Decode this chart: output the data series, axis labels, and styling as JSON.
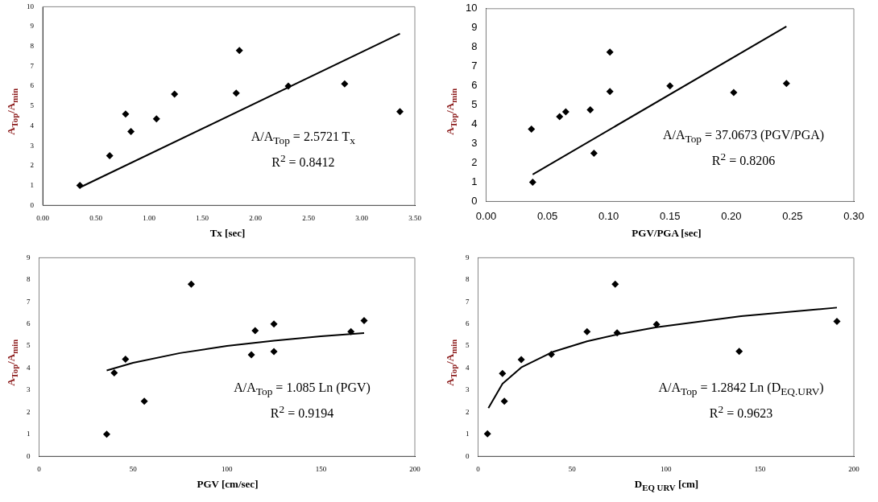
{
  "chart_data": [
    {
      "type": "scatter",
      "xlabel": "Tx [sec]",
      "ylabel": "A$_{Top}$/A$_{min}$",
      "annotations": [
        "A/A$_{Top}$ = 2.5721 T$_{x}$",
        "R$^{2}$ = 0.8412"
      ],
      "xlim": [
        0,
        3.5
      ],
      "xticks": [
        {
          "value": 0,
          "label": "0.00"
        },
        {
          "value": 0.5,
          "label": "0.50"
        },
        {
          "value": 1,
          "label": "1.00"
        },
        {
          "value": 1.5,
          "label": "1.50"
        },
        {
          "value": 2,
          "label": "2.00"
        },
        {
          "value": 2.5,
          "label": "2.50"
        },
        {
          "value": 3,
          "label": "3.00"
        },
        {
          "value": 3.5,
          "label": "3.50"
        }
      ],
      "ylim": [
        0,
        10
      ],
      "yticks": [
        0,
        1,
        2,
        3,
        4,
        5,
        6,
        7,
        8,
        9,
        10
      ],
      "grid": false,
      "legend": false,
      "marker": "diamond",
      "series": [
        {
          "color": "#000000",
          "x": [
            0.35,
            0.63,
            0.78,
            0.83,
            1.07,
            1.24,
            1.82,
            1.85,
            2.31,
            2.84,
            3.36
          ],
          "values": [
            1.0,
            2.5,
            4.6,
            3.72,
            4.35,
            5.6,
            5.65,
            7.8,
            6.0,
            6.12,
            4.72
          ]
        },
        {
          "type": "line",
          "color": "#000000",
          "marker": "none",
          "x": [
            0.35,
            3.36
          ],
          "values": [
            0.9,
            8.64
          ]
        }
      ]
    },
    {
      "type": "scatter",
      "xlabel": "PGV/PGA [sec]",
      "ylabel": "A$_{Top}$/A$_{min}$",
      "annotations": [
        "A/A$_{Top}$ = 37.0673 (PGV/PGA)",
        "R$^{2}$ = 0.8206"
      ],
      "xlim": [
        0,
        0.3
      ],
      "xticks": [
        {
          "value": 0,
          "label": "0.00"
        },
        {
          "value": 0.05,
          "label": "0.05"
        },
        {
          "value": 0.1,
          "label": "0.10"
        },
        {
          "value": 0.15,
          "label": "0.15"
        },
        {
          "value": 0.2,
          "label": "0.20"
        },
        {
          "value": 0.25,
          "label": "0.25"
        },
        {
          "value": 0.3,
          "label": "0.30"
        }
      ],
      "ylim": [
        0,
        10
      ],
      "yticks": [
        0,
        1,
        2,
        3,
        4,
        5,
        6,
        7,
        8,
        9,
        10
      ],
      "grid": false,
      "legend": false,
      "marker": "diamond",
      "series": [
        {
          "color": "#000000",
          "x": [
            0.037,
            0.038,
            0.06,
            0.065,
            0.085,
            0.088,
            0.101,
            0.101,
            0.15,
            0.202,
            0.245
          ],
          "values": [
            3.75,
            1.0,
            4.4,
            4.65,
            4.75,
            2.5,
            5.7,
            7.75,
            6.0,
            5.65,
            6.12
          ]
        },
        {
          "type": "line",
          "color": "#000000",
          "marker": "none",
          "x": [
            0.038,
            0.245
          ],
          "values": [
            1.4,
            9.08
          ]
        }
      ]
    },
    {
      "type": "scatter",
      "xlabel": "PGV  [cm/sec]",
      "ylabel": "A$_{Top}$/A$_{min}$",
      "annotations": [
        "A/A$_{Top}$ = 1.085 Ln (PGV)",
        "R$^{2}$ = 0.9194"
      ],
      "xlim": [
        0,
        200
      ],
      "xticks": [
        0,
        50,
        100,
        150,
        200
      ],
      "ylim": [
        0,
        9
      ],
      "yticks": [
        0,
        1,
        2,
        3,
        4,
        5,
        6,
        7,
        8,
        9
      ],
      "grid": false,
      "legend": false,
      "marker": "diamond",
      "series": [
        {
          "color": "#000000",
          "x": [
            36,
            40,
            46,
            56,
            81,
            113,
            115,
            125,
            125,
            166,
            173
          ],
          "values": [
            1.0,
            3.78,
            4.4,
            2.5,
            7.8,
            4.6,
            5.7,
            6.0,
            4.75,
            5.65,
            6.15
          ]
        },
        {
          "type": "line",
          "color": "#000000",
          "marker": "none",
          "x": [
            36,
            50,
            75,
            100,
            125,
            150,
            173
          ],
          "values": [
            3.89,
            4.24,
            4.68,
            5.0,
            5.24,
            5.44,
            5.59
          ]
        }
      ]
    },
    {
      "type": "scatter",
      "xlabel": "D$_{EQ URV}$ [cm]",
      "ylabel": "A$_{Top}$/A$_{min}$",
      "annotations": [
        "A/A$_{Top}$ = 1.2842  Ln (D$_{EQ.URV}$)",
        "R$^{2}$ = 0.9623"
      ],
      "xlim": [
        0,
        200
      ],
      "xticks": [
        0,
        50,
        100,
        150,
        200
      ],
      "ylim": [
        0,
        9
      ],
      "yticks": [
        0,
        1,
        2,
        3,
        4,
        5,
        6,
        7,
        8,
        9
      ],
      "grid": false,
      "legend": false,
      "marker": "diamond",
      "series": [
        {
          "color": "#000000",
          "x": [
            5,
            13,
            14,
            23,
            39,
            58,
            73,
            74,
            95,
            139,
            191
          ],
          "values": [
            1.02,
            3.75,
            2.5,
            4.38,
            4.62,
            5.65,
            7.8,
            5.6,
            5.98,
            4.76,
            6.12
          ]
        },
        {
          "type": "line",
          "color": "#000000",
          "marker": "none",
          "x": [
            5.5,
            13,
            23,
            40,
            58,
            75,
            95,
            140,
            191
          ],
          "values": [
            2.19,
            3.29,
            4.03,
            4.74,
            5.21,
            5.54,
            5.85,
            6.35,
            6.74
          ]
        }
      ]
    }
  ]
}
